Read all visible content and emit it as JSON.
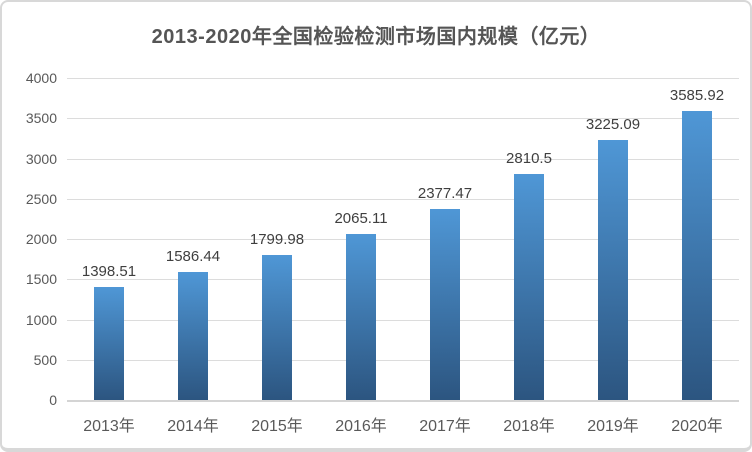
{
  "chart_data": {
    "type": "bar",
    "title": "2013-2020年全国检验检测市场国内规模（亿元）",
    "categories": [
      "2013年",
      "2014年",
      "2015年",
      "2016年",
      "2017年",
      "2018年",
      "2019年",
      "2020年"
    ],
    "values": [
      1398.51,
      1586.44,
      1799.98,
      2065.11,
      2377.47,
      2810.5,
      3225.09,
      3585.92
    ],
    "value_labels": [
      "1398.51",
      "1586.44",
      "1799.98",
      "2065.11",
      "2377.47",
      "2810.5",
      "3225.09",
      "3585.92"
    ],
    "xlabel": "",
    "ylabel": "",
    "ylim": [
      0,
      4000
    ],
    "yticks": [
      0,
      500,
      1000,
      1500,
      2000,
      2500,
      3000,
      3500,
      4000
    ],
    "grid": true,
    "legend": false,
    "colors": {
      "bar_gradient_top": "#4f97d6",
      "bar_gradient_bottom": "#2c5580",
      "gridline": "#dcdcdc",
      "axis_line": "#d4d4d4",
      "title_text": "#555555",
      "tick_text": "#595959",
      "value_text": "#3f3f3f",
      "card_border": "#d8d8d8",
      "background": "#ffffff"
    }
  }
}
